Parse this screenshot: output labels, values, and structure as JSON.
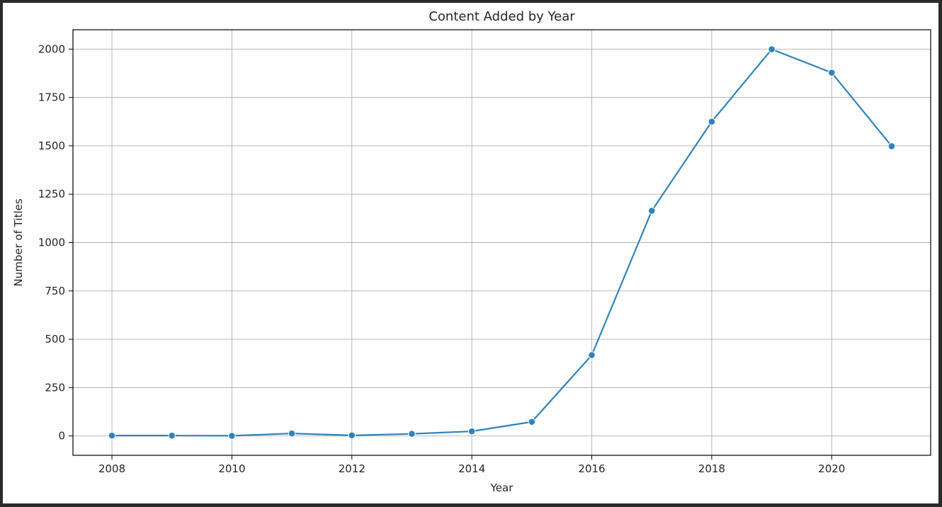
{
  "chart_data": {
    "type": "line",
    "title": "Content Added by Year",
    "xlabel": "Year",
    "ylabel": "Number of Titles",
    "x": [
      2008,
      2009,
      2010,
      2011,
      2012,
      2013,
      2014,
      2015,
      2016,
      2017,
      2018,
      2019,
      2020,
      2021
    ],
    "series": [
      {
        "values": [
          2,
          2,
          1,
          13,
          3,
          11,
          24,
          73,
          418,
          1164,
          1625,
          1999,
          1878,
          1498
        ]
      }
    ],
    "xlim": [
      2007.35,
      2021.65
    ],
    "ylim": [
      -100,
      2100
    ],
    "xticks": [
      2008,
      2010,
      2012,
      2014,
      2016,
      2018,
      2020
    ],
    "yticks": [
      0,
      250,
      500,
      750,
      1000,
      1250,
      1500,
      1750,
      2000
    ],
    "grid": true,
    "line_color": "#3182bd"
  }
}
